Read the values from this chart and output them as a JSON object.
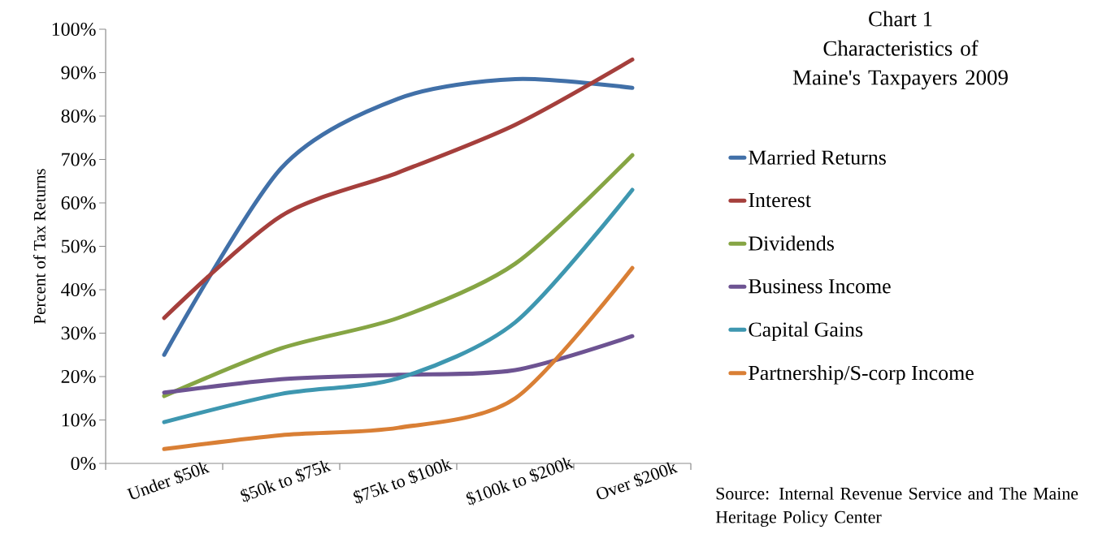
{
  "chart_data": {
    "type": "line",
    "title": "Chart 1",
    "subtitle": "Characteristics of Maine's Taxpayers 2009",
    "ylabel": "Percent of Tax Returns",
    "categories": [
      "Under $50k",
      "$50k to $75k",
      "$75k to $100k",
      "$100k to $200k",
      "Over $200k"
    ],
    "series": [
      {
        "name": "Married Returns",
        "color": "#4170a8",
        "values": [
          25,
          68,
          84,
          88.5,
          86.5
        ]
      },
      {
        "name": "Interest",
        "color": "#a53f3c",
        "values": [
          33.5,
          57,
          67,
          78,
          93
        ]
      },
      {
        "name": "Dividends",
        "color": "#86a544",
        "values": [
          15.5,
          26.5,
          33.5,
          46,
          71
        ]
      },
      {
        "name": "Business Income",
        "color": "#6d5392",
        "values": [
          16.3,
          19.4,
          20.4,
          21.5,
          29.3
        ]
      },
      {
        "name": "Capital Gains",
        "color": "#3e97b0",
        "values": [
          9.5,
          16,
          19.6,
          32.5,
          63
        ]
      },
      {
        "name": "Partnership/S-corp Income",
        "color": "#d97f35",
        "values": [
          3.3,
          6.5,
          8.2,
          15,
          45
        ]
      }
    ],
    "ylim": [
      0,
      100
    ],
    "yticks": [
      {
        "value": 0,
        "label": "0%"
      },
      {
        "value": 10,
        "label": "10%"
      },
      {
        "value": 20,
        "label": "20%"
      },
      {
        "value": 30,
        "label": "30%"
      },
      {
        "value": 40,
        "label": "40%"
      },
      {
        "value": 50,
        "label": "50%"
      },
      {
        "value": 60,
        "label": "60%"
      },
      {
        "value": 70,
        "label": "70%"
      },
      {
        "value": 80,
        "label": "80%"
      },
      {
        "value": 90,
        "label": "90%"
      },
      {
        "value": 100,
        "label": "100%"
      }
    ],
    "grid": false,
    "legend": "right",
    "marker": "none",
    "line_style": "solid",
    "annotations": [
      "Source: Internal Revenue Service and The Maine Heritage Policy Center"
    ]
  }
}
